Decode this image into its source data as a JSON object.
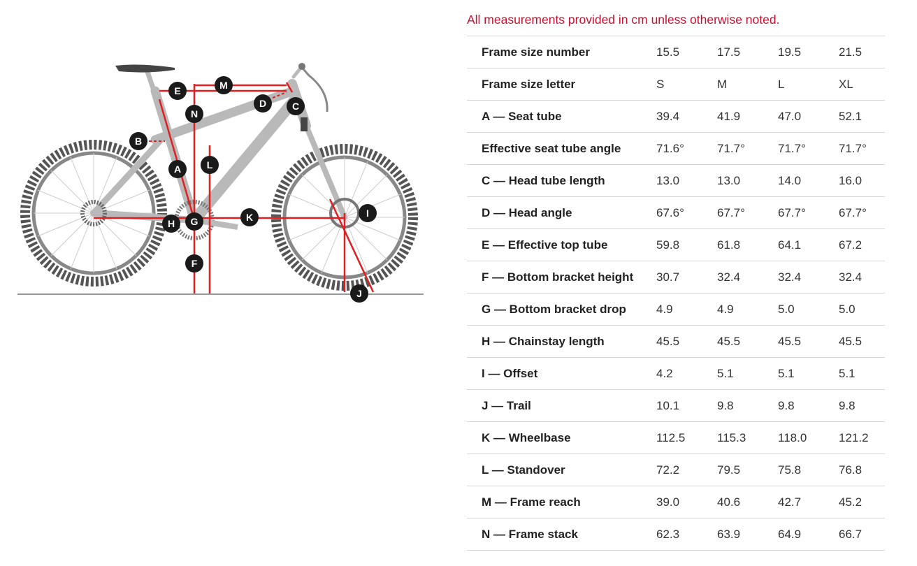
{
  "note": "All measurements provided in cm unless otherwise noted.",
  "colors": {
    "accent": "#c8102e",
    "frame": "#b9b9b9",
    "tire": "#555555"
  },
  "diagram": {
    "labels": [
      "A",
      "B",
      "C",
      "D",
      "E",
      "F",
      "G",
      "H",
      "I",
      "J",
      "K",
      "L",
      "M",
      "N"
    ]
  },
  "rows": [
    {
      "label": "Frame size number",
      "values": [
        "15.5",
        "17.5",
        "19.5",
        "21.5"
      ]
    },
    {
      "label": "Frame size letter",
      "values": [
        "S",
        "M",
        "L",
        "XL"
      ]
    },
    {
      "label": "A — Seat tube",
      "values": [
        "39.4",
        "41.9",
        "47.0",
        "52.1"
      ]
    },
    {
      "label": "Effective seat tube angle",
      "values": [
        "71.6°",
        "71.7°",
        "71.7°",
        "71.7°"
      ]
    },
    {
      "label": "C — Head tube length",
      "values": [
        "13.0",
        "13.0",
        "14.0",
        "16.0"
      ]
    },
    {
      "label": "D — Head angle",
      "values": [
        "67.6°",
        "67.7°",
        "67.7°",
        "67.7°"
      ]
    },
    {
      "label": "E — Effective top tube",
      "values": [
        "59.8",
        "61.8",
        "64.1",
        "67.2"
      ]
    },
    {
      "label": "F — Bottom bracket height",
      "values": [
        "30.7",
        "32.4",
        "32.4",
        "32.4"
      ]
    },
    {
      "label": "G — Bottom bracket drop",
      "values": [
        "4.9",
        "4.9",
        "5.0",
        "5.0"
      ]
    },
    {
      "label": "H — Chainstay length",
      "values": [
        "45.5",
        "45.5",
        "45.5",
        "45.5"
      ]
    },
    {
      "label": "I — Offset",
      "values": [
        "4.2",
        "5.1",
        "5.1",
        "5.1"
      ]
    },
    {
      "label": "J — Trail",
      "values": [
        "10.1",
        "9.8",
        "9.8",
        "9.8"
      ]
    },
    {
      "label": "K — Wheelbase",
      "values": [
        "112.5",
        "115.3",
        "118.0",
        "121.2"
      ]
    },
    {
      "label": "L — Standover",
      "values": [
        "72.2",
        "79.5",
        "75.8",
        "76.8"
      ]
    },
    {
      "label": "M — Frame reach",
      "values": [
        "39.0",
        "40.6",
        "42.7",
        "45.2"
      ]
    },
    {
      "label": "N — Frame stack",
      "values": [
        "62.3",
        "63.9",
        "64.9",
        "66.7"
      ]
    }
  ]
}
